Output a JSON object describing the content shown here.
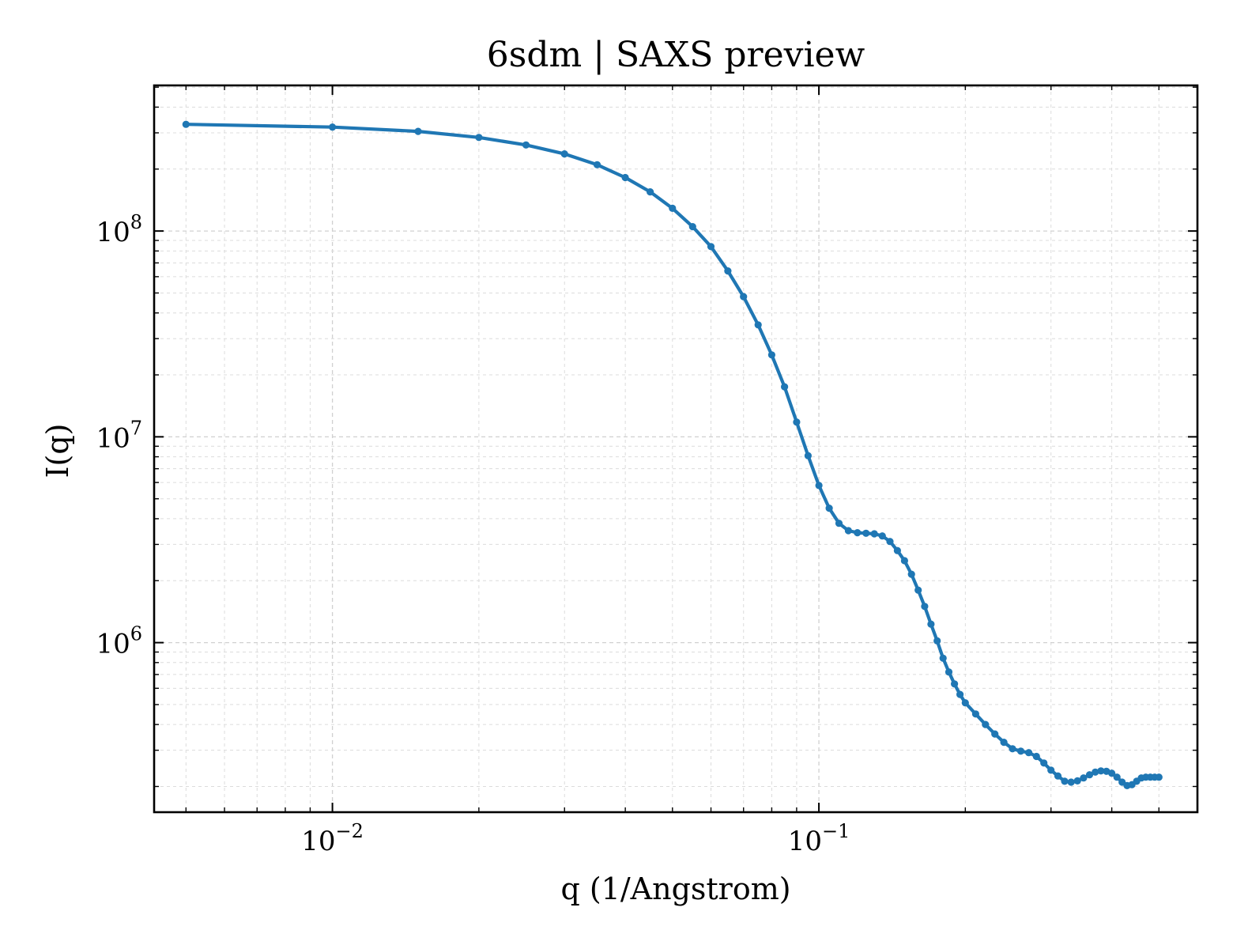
{
  "chart_data": {
    "type": "line",
    "title": "6sdm | SAXS preview",
    "xlabel": "q (1/Angstrom)",
    "ylabel": "I(q)",
    "xscale": "log",
    "yscale": "log",
    "xlim": [
      0.0043,
      0.6
    ],
    "ylim": [
      150000,
      510000000
    ],
    "grid": true,
    "color": "#1f77b4",
    "x_ticks": [
      {
        "base": "10",
        "exp": "−2",
        "value": 0.01
      },
      {
        "base": "10",
        "exp": "−1",
        "value": 0.1
      }
    ],
    "y_ticks": [
      {
        "base": "10",
        "exp": "6",
        "value": 1000000
      },
      {
        "base": "10",
        "exp": "7",
        "value": 10000000
      },
      {
        "base": "10",
        "exp": "8",
        "value": 100000000
      }
    ],
    "series": [
      {
        "x": [
          0.005,
          0.01,
          0.015,
          0.02,
          0.025,
          0.03,
          0.035,
          0.04,
          0.045,
          0.05,
          0.055,
          0.06,
          0.065,
          0.07,
          0.075,
          0.08,
          0.085,
          0.09,
          0.095,
          0.1,
          0.105,
          0.11,
          0.115,
          0.12,
          0.125,
          0.13,
          0.135,
          0.14,
          0.145,
          0.15,
          0.155,
          0.16,
          0.165,
          0.17,
          0.175,
          0.18,
          0.185,
          0.19,
          0.195,
          0.2,
          0.21,
          0.22,
          0.23,
          0.24,
          0.25,
          0.26,
          0.27,
          0.28,
          0.29,
          0.3,
          0.31,
          0.32,
          0.33,
          0.34,
          0.35,
          0.36,
          0.37,
          0.38,
          0.39,
          0.4,
          0.41,
          0.42,
          0.43,
          0.44,
          0.45,
          0.46,
          0.47,
          0.48,
          0.49,
          0.5
        ],
        "y": [
          330000000,
          320000000,
          305000000,
          285000000,
          262000000,
          237000000,
          210000000,
          182000000,
          155000000,
          129000000,
          105000000,
          84000000,
          64000000,
          48000000,
          35000000,
          25000000,
          17500000,
          11800000,
          8100000,
          5800000,
          4500000,
          3800000,
          3500000,
          3420000,
          3400000,
          3380000,
          3300000,
          3100000,
          2800000,
          2500000,
          2150000,
          1800000,
          1500000,
          1230000,
          1020000,
          840000,
          720000,
          630000,
          560000,
          510000,
          450000,
          400000,
          360000,
          328000,
          305000,
          297000,
          292000,
          280000,
          260000,
          240000,
          225000,
          212000,
          210000,
          213000,
          220000,
          228000,
          235000,
          238000,
          237000,
          232000,
          222000,
          210000,
          202000,
          204000,
          212000,
          220000,
          222000,
          222000,
          222000,
          222000
        ]
      }
    ]
  }
}
